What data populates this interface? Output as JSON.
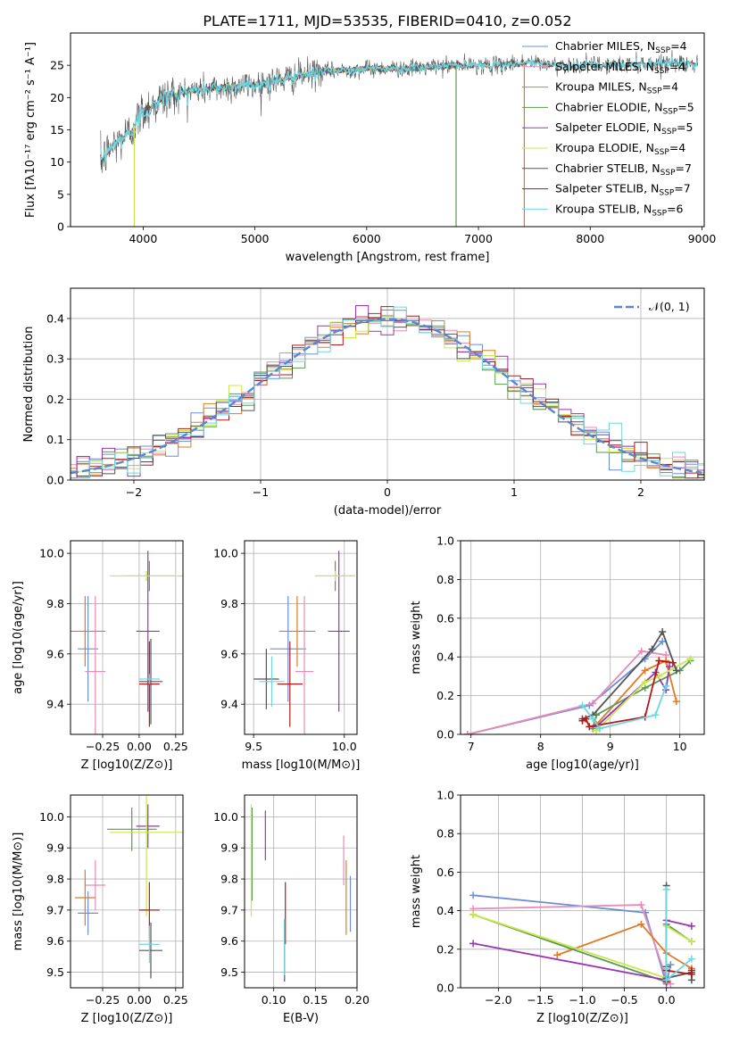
{
  "figure": {
    "title": "PLATE=1711, MJD=53535, FIBERID=0410, z=0.052"
  },
  "colors": {
    "Chabrier MILES": "#6a8fd8",
    "Salpeter MILES": "#e88ab8",
    "Kroupa MILES": "#e07a25",
    "Chabrier ELODIE": "#5a9a50",
    "Salpeter ELODIE": "#9b35b5",
    "Kroupa ELODIE": "#c9e84a",
    "Chabrier STELIB": "#555555",
    "Salpeter STELIB": "#b21a1a",
    "Kroupa STELIB": "#6fd6e0"
  },
  "legend": {
    "entries": [
      {
        "model": "Chabrier MILES",
        "prefix": "Chabrier MILES, N",
        "sub": "SSP",
        "suffix": "=4"
      },
      {
        "model": "Salpeter MILES",
        "prefix": "Salpeter MILES, N",
        "sub": "SSP",
        "suffix": "=4"
      },
      {
        "model": "Kroupa MILES",
        "prefix": "Kroupa MILES, N",
        "sub": "SSP",
        "suffix": "=4"
      },
      {
        "model": "Chabrier ELODIE",
        "prefix": "Chabrier ELODIE, N",
        "sub": "SSP",
        "suffix": "=5"
      },
      {
        "model": "Salpeter ELODIE",
        "prefix": "Salpeter ELODIE, N",
        "sub": "SSP",
        "suffix": "=5"
      },
      {
        "model": "Kroupa ELODIE",
        "prefix": "Kroupa ELODIE, N",
        "sub": "SSP",
        "suffix": "=4"
      },
      {
        "model": "Chabrier STELIB",
        "prefix": "Chabrier STELIB, N",
        "sub": "SSP",
        "suffix": "=7"
      },
      {
        "model": "Salpeter STELIB",
        "prefix": "Salpeter STELIB, N",
        "sub": "SSP",
        "suffix": "=7"
      },
      {
        "model": "Kroupa STELIB",
        "prefix": "Kroupa STELIB, N",
        "sub": "SSP",
        "suffix": "=6"
      }
    ],
    "normal_label": "𝒩(0, 1)"
  },
  "chart_data": [
    {
      "id": "spectrum",
      "type": "line",
      "xlabel": "wavelength [Angstrom, rest frame]",
      "ylabel": "Flux [fλ10⁻¹⁷ erg cm⁻² s⁻¹ A⁻¹]",
      "xlim": [
        3350,
        9020
      ],
      "ylim": [
        0,
        30
      ],
      "xticks": [
        4000,
        5000,
        6000,
        7000,
        8000,
        9000
      ],
      "yticks": [
        0,
        5,
        10,
        15,
        20,
        25
      ],
      "continuum": [
        [
          3620,
          10
        ],
        [
          3700,
          12
        ],
        [
          3800,
          13.5
        ],
        [
          3900,
          15
        ],
        [
          4000,
          18
        ],
        [
          4200,
          20
        ],
        [
          4400,
          21
        ],
        [
          4700,
          21.5
        ],
        [
          5000,
          22
        ],
        [
          5300,
          23
        ],
        [
          5600,
          24
        ],
        [
          6000,
          24.5
        ],
        [
          6400,
          24.5
        ],
        [
          6800,
          25
        ],
        [
          7200,
          25
        ],
        [
          7400,
          25.5
        ],
        [
          7700,
          25
        ],
        [
          8200,
          25
        ],
        [
          8800,
          25.5
        ],
        [
          8960,
          25
        ]
      ],
      "grid": false
    },
    {
      "id": "residuals",
      "type": "line",
      "xlabel": "(data-model)/error",
      "ylabel": "Normed distribution",
      "xlim": [
        -2.5,
        2.5
      ],
      "ylim": [
        0,
        0.475
      ],
      "xticks": [
        -2,
        -1,
        0,
        1,
        2
      ],
      "yticks": [
        0.0,
        0.1,
        0.2,
        0.3,
        0.4
      ],
      "grid": true,
      "bin_width": 0.1,
      "normal_curve": {
        "mu": 0,
        "sigma": 1
      }
    },
    {
      "id": "z-age",
      "type": "scatter",
      "xlabel": "Z [log10(Z/Z⊙)]",
      "ylabel": "age [log10(age/yr)]",
      "xlim": [
        -0.47,
        0.3
      ],
      "ylim": [
        9.28,
        10.05
      ],
      "xticks": [
        -0.25,
        0.0,
        0.25
      ],
      "yticks": [
        9.4,
        9.6,
        9.8,
        10.0
      ],
      "grid": true,
      "points": [
        {
          "model": "Chabrier MILES",
          "x": -0.35,
          "xe": 0.07,
          "y": 9.62,
          "ye": 0.21
        },
        {
          "model": "Salpeter MILES",
          "x": -0.3,
          "xe": 0.07,
          "y": 9.53,
          "ye": 0.3
        },
        {
          "model": "Kroupa MILES",
          "x": -0.37,
          "xe": 0.14,
          "y": 9.69,
          "ye": 0.14
        },
        {
          "model": "Chabrier ELODIE",
          "x": 0.07,
          "xe": 0.17,
          "y": 9.91,
          "ye": 0.06
        },
        {
          "model": "Salpeter ELODIE",
          "x": 0.06,
          "xe": 0.08,
          "y": 9.69,
          "ye": 0.32
        },
        {
          "model": "Kroupa ELODIE",
          "x": 0.05,
          "xe": 0.25,
          "y": 9.91,
          "ye": 0.02
        },
        {
          "model": "Chabrier STELIB",
          "x": 0.08,
          "xe": 0.08,
          "y": 9.49,
          "ye": 0.17
        },
        {
          "model": "Salpeter STELIB",
          "x": 0.07,
          "xe": 0.07,
          "y": 9.48,
          "ye": 0.17
        },
        {
          "model": "Kroupa STELIB",
          "x": 0.07,
          "xe": 0.07,
          "y": 9.5,
          "ye": 0.02
        }
      ]
    },
    {
      "id": "mass-age",
      "type": "scatter",
      "xlabel": "mass [log10(M/M⊙)]",
      "ylabel": "",
      "xlim": [
        9.45,
        10.07
      ],
      "ylim": [
        9.28,
        10.05
      ],
      "xticks": [
        9.5,
        10.0
      ],
      "yticks": [
        9.4,
        9.6,
        9.8,
        10.0
      ],
      "grid": true,
      "points": [
        {
          "model": "Chabrier MILES",
          "x": 9.69,
          "xe": 0.1,
          "y": 9.62,
          "ye": 0.21
        },
        {
          "model": "Salpeter MILES",
          "x": 9.78,
          "xe": 0.05,
          "y": 9.53,
          "ye": 0.3
        },
        {
          "model": "Kroupa MILES",
          "x": 9.74,
          "xe": 0.1,
          "y": 9.69,
          "ye": 0.14
        },
        {
          "model": "Chabrier ELODIE",
          "x": 9.95,
          "xe": 0.11,
          "y": 9.91,
          "ye": 0.06
        },
        {
          "model": "Salpeter ELODIE",
          "x": 9.97,
          "xe": 0.06,
          "y": 9.69,
          "ye": 0.32
        },
        {
          "model": "Kroupa ELODIE",
          "x": 9.95,
          "xe": 0.11,
          "y": 9.91,
          "ye": 0.02
        },
        {
          "model": "Chabrier STELIB",
          "x": 9.57,
          "xe": 0.07,
          "y": 9.5,
          "ye": 0.12
        },
        {
          "model": "Salpeter STELIB",
          "x": 9.7,
          "xe": 0.07,
          "y": 9.48,
          "ye": 0.17
        },
        {
          "model": "Kroupa STELIB",
          "x": 9.6,
          "xe": 0.07,
          "y": 9.49,
          "ye": 0.1
        }
      ]
    },
    {
      "id": "age-weight",
      "type": "line",
      "xlabel": "age [log10(age/yr)]",
      "ylabel": "mass weight",
      "xlim": [
        6.85,
        10.35
      ],
      "ylim": [
        0,
        1
      ],
      "xticks": [
        7,
        8,
        9,
        10
      ],
      "yticks": [
        0.0,
        0.2,
        0.4,
        0.6,
        0.8,
        1.0
      ],
      "grid": true,
      "series": [
        {
          "model": "Chabrier MILES",
          "x": [
            6.95,
            8.7,
            9.5,
            9.75
          ],
          "y": [
            0.0,
            0.15,
            0.39,
            0.48
          ]
        },
        {
          "model": "Salpeter MILES",
          "x": [
            6.95,
            8.75,
            9.45,
            9.8
          ],
          "y": [
            0.0,
            0.16,
            0.43,
            0.41
          ]
        },
        {
          "model": "Kroupa MILES",
          "x": [
            8.8,
            9.5,
            9.8,
            9.95
          ],
          "y": [
            0.05,
            0.33,
            0.38,
            0.17
          ]
        },
        {
          "model": "Chabrier ELODIE",
          "x": [
            8.75,
            8.8,
            9.5,
            10.0,
            10.15
          ],
          "y": [
            0.03,
            0.1,
            0.24,
            0.33,
            0.38
          ]
        },
        {
          "model": "Salpeter ELODIE",
          "x": [
            8.8,
            9.65,
            9.8,
            9.85
          ],
          "y": [
            0.04,
            0.32,
            0.23,
            0.35
          ]
        },
        {
          "model": "Kroupa ELODIE",
          "x": [
            8.8,
            9.5,
            9.7,
            10.15
          ],
          "y": [
            0.02,
            0.27,
            0.3,
            0.39
          ]
        },
        {
          "model": "Chabrier STELIB",
          "x": [
            8.6,
            8.75,
            9.6,
            9.75,
            9.95
          ],
          "y": [
            0.08,
            0.1,
            0.44,
            0.53,
            0.33
          ]
        },
        {
          "model": "Salpeter STELIB",
          "x": [
            8.6,
            8.65,
            8.7,
            9.5,
            9.7,
            9.9
          ],
          "y": [
            0.07,
            0.08,
            0.04,
            0.09,
            0.38,
            0.37
          ]
        },
        {
          "model": "Kroupa STELIB",
          "x": [
            8.6,
            8.75,
            8.85,
            9.65,
            9.8
          ],
          "y": [
            0.15,
            0.08,
            0.03,
            0.1,
            0.25
          ]
        }
      ]
    },
    {
      "id": "z-mass",
      "type": "scatter",
      "xlabel": "Z [log10(Z/Z⊙)]",
      "ylabel": "mass [log10(M/M⊙)]",
      "xlim": [
        -0.47,
        0.3
      ],
      "ylim": [
        9.45,
        10.07
      ],
      "xticks": [
        -0.25,
        0.0,
        0.25
      ],
      "yticks": [
        9.5,
        9.6,
        9.7,
        9.8,
        9.9,
        10.0
      ],
      "grid": true,
      "points": [
        {
          "model": "Chabrier MILES",
          "x": -0.35,
          "xe": 0.07,
          "y": 9.69,
          "ye": 0.07
        },
        {
          "model": "Salpeter MILES",
          "x": -0.3,
          "xe": 0.07,
          "y": 9.78,
          "ye": 0.08
        },
        {
          "model": "Kroupa MILES",
          "x": -0.37,
          "xe": 0.07,
          "y": 9.74,
          "ye": 0.09
        },
        {
          "model": "Chabrier ELODIE",
          "x": -0.05,
          "xe": 0.17,
          "y": 9.96,
          "ye": 0.07
        },
        {
          "model": "Salpeter ELODIE",
          "x": 0.06,
          "xe": 0.08,
          "y": 9.97,
          "ye": 0.07
        },
        {
          "model": "Kroupa ELODIE",
          "x": 0.05,
          "xe": 0.25,
          "y": 9.95,
          "ye": 0.27
        },
        {
          "model": "Chabrier STELIB",
          "x": 0.08,
          "xe": 0.08,
          "y": 9.57,
          "ye": 0.09
        },
        {
          "model": "Salpeter STELIB",
          "x": 0.07,
          "xe": 0.07,
          "y": 9.7,
          "ye": 0.09
        },
        {
          "model": "Kroupa STELIB",
          "x": 0.07,
          "xe": 0.07,
          "y": 9.59,
          "ye": 0.06
        }
      ]
    },
    {
      "id": "ebv-mass",
      "type": "scatter",
      "xlabel": "E(B-V)",
      "ylabel": "",
      "xlim": [
        0.065,
        0.2
      ],
      "ylim": [
        9.45,
        10.07
      ],
      "xticks": [
        0.1,
        0.15,
        0.2
      ],
      "yticks": [
        9.5,
        9.6,
        9.7,
        9.8,
        9.9,
        10.0
      ],
      "grid": true,
      "points": [
        {
          "model": "Chabrier MILES",
          "x": 0.192,
          "y": 9.72,
          "ye": 0.09
        },
        {
          "model": "Salpeter MILES",
          "x": 0.184,
          "y": 9.86,
          "ye": 0.08
        },
        {
          "model": "Kroupa MILES",
          "x": 0.187,
          "y": 9.74,
          "ye": 0.12
        },
        {
          "model": "Chabrier ELODIE",
          "x": 0.074,
          "y": 9.88,
          "ye": 0.15
        },
        {
          "model": "Salpeter ELODIE",
          "x": 0.09,
          "y": 9.94,
          "ye": 0.08
        },
        {
          "model": "Kroupa ELODIE",
          "x": 0.073,
          "y": 9.86,
          "ye": 0.18
        },
        {
          "model": "Chabrier STELIB",
          "x": 0.113,
          "y": 9.57,
          "ye": 0.1
        },
        {
          "model": "Salpeter STELIB",
          "x": 0.114,
          "y": 9.69,
          "ye": 0.1
        },
        {
          "model": "Kroupa STELIB",
          "x": 0.113,
          "y": 9.58,
          "ye": 0.09
        }
      ]
    },
    {
      "id": "z-weight",
      "type": "line",
      "xlabel": "Z [log10(Z/Z⊙)]",
      "ylabel": "mass weight",
      "xlim": [
        -2.45,
        0.45
      ],
      "ylim": [
        0,
        1
      ],
      "xticks": [
        -2.0,
        -1.5,
        -1.0,
        -0.5,
        0.0
      ],
      "yticks": [
        0.0,
        0.2,
        0.4,
        0.6,
        0.8,
        1.0
      ],
      "grid": true,
      "series": [
        {
          "model": "Chabrier MILES",
          "x": [
            -2.3,
            -0.25,
            0.0,
            0.05
          ],
          "y": [
            0.48,
            0.39,
            0.02,
            0.12
          ]
        },
        {
          "model": "Salpeter MILES",
          "x": [
            -2.3,
            -0.3,
            0.0,
            0.05
          ],
          "y": [
            0.41,
            0.43,
            0.05,
            0.02
          ]
        },
        {
          "model": "Kroupa MILES",
          "x": [
            -1.3,
            -0.3,
            0.0,
            0.3
          ],
          "y": [
            0.17,
            0.33,
            0.18,
            0.1
          ]
        },
        {
          "model": "Chabrier ELODIE",
          "x": [
            -2.3,
            0.0,
            0.0,
            0.3
          ],
          "y": [
            0.38,
            0.03,
            0.33,
            0.24
          ]
        },
        {
          "model": "Salpeter ELODIE",
          "x": [
            -2.3,
            0.0,
            0.0,
            0.3
          ],
          "y": [
            0.23,
            0.04,
            0.35,
            0.32
          ]
        },
        {
          "model": "Kroupa ELODIE",
          "x": [
            -2.3,
            0.0,
            0.0,
            0.3
          ],
          "y": [
            0.38,
            0.05,
            0.32,
            0.24
          ]
        },
        {
          "model": "Chabrier STELIB",
          "x": [
            0.0,
            0.0,
            0.0,
            0.3,
            0.3
          ],
          "y": [
            0.53,
            0.11,
            0.05,
            0.08,
            0.04
          ]
        },
        {
          "model": "Salpeter STELIB",
          "x": [
            0.0,
            0.0,
            0.3,
            0.3
          ],
          "y": [
            0.03,
            0.09,
            0.07,
            0.09
          ]
        },
        {
          "model": "Kroupa STELIB",
          "x": [
            0.0,
            0.0,
            0.0,
            0.3
          ],
          "y": [
            0.51,
            0.1,
            0.04,
            0.15
          ]
        }
      ]
    }
  ]
}
